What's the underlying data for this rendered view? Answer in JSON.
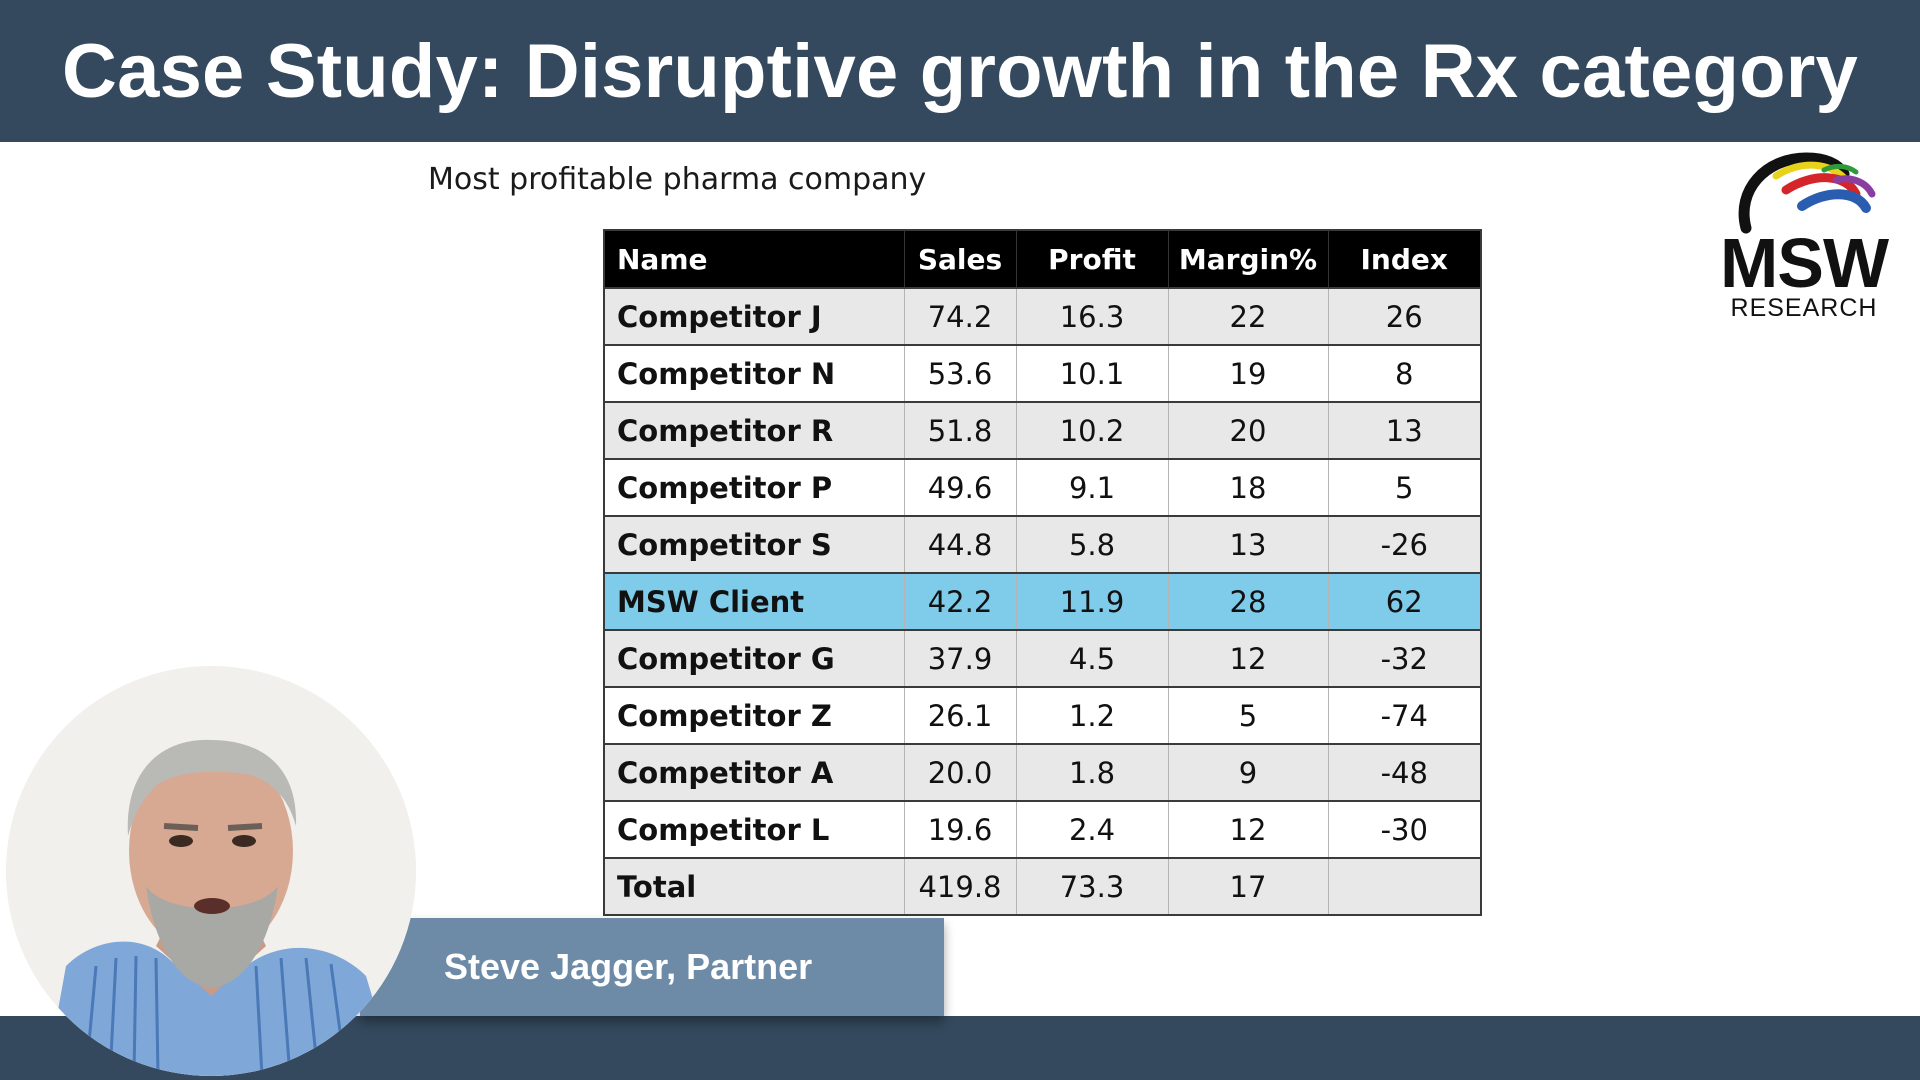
{
  "header": {
    "title": "Case Study: Disruptive growth in the Rx category"
  },
  "subtitle": "Most profitable pharma company",
  "table": {
    "columns": [
      "Name",
      "Sales",
      "Profit",
      "Margin%",
      "Index"
    ],
    "rows": [
      [
        "Competitor J",
        "74.2",
        "16.3",
        "22",
        "26"
      ],
      [
        "Competitor N",
        "53.6",
        "10.1",
        "19",
        "8"
      ],
      [
        "Competitor R",
        "51.8",
        "10.2",
        "20",
        "13"
      ],
      [
        "Competitor P",
        "49.6",
        "9.1",
        "18",
        "5"
      ],
      [
        "Competitor S",
        "44.8",
        "5.8",
        "13",
        "-26"
      ],
      [
        "MSW Client",
        "42.2",
        "11.9",
        "28",
        "62"
      ],
      [
        "Competitor G",
        "37.9",
        "4.5",
        "12",
        "-32"
      ],
      [
        "Competitor Z",
        "26.1",
        "1.2",
        "5",
        "-74"
      ],
      [
        "Competitor A",
        "20.0",
        "1.8",
        "9",
        "-48"
      ],
      [
        "Competitor L",
        "19.6",
        "2.4",
        "12",
        "-30"
      ],
      [
        "Total",
        "419.8",
        "73.3",
        "17",
        ""
      ]
    ],
    "highlight_row": "MSW Client",
    "highlight_color": "#7ecbea"
  },
  "logo": {
    "line1": "MSW",
    "line2": "RESEARCH"
  },
  "presenter": {
    "name": "Steve Jagger, Partner"
  },
  "colors": {
    "bar": "#34495e",
    "name_plate": "#6d8ba6",
    "header_row": "#000000"
  }
}
